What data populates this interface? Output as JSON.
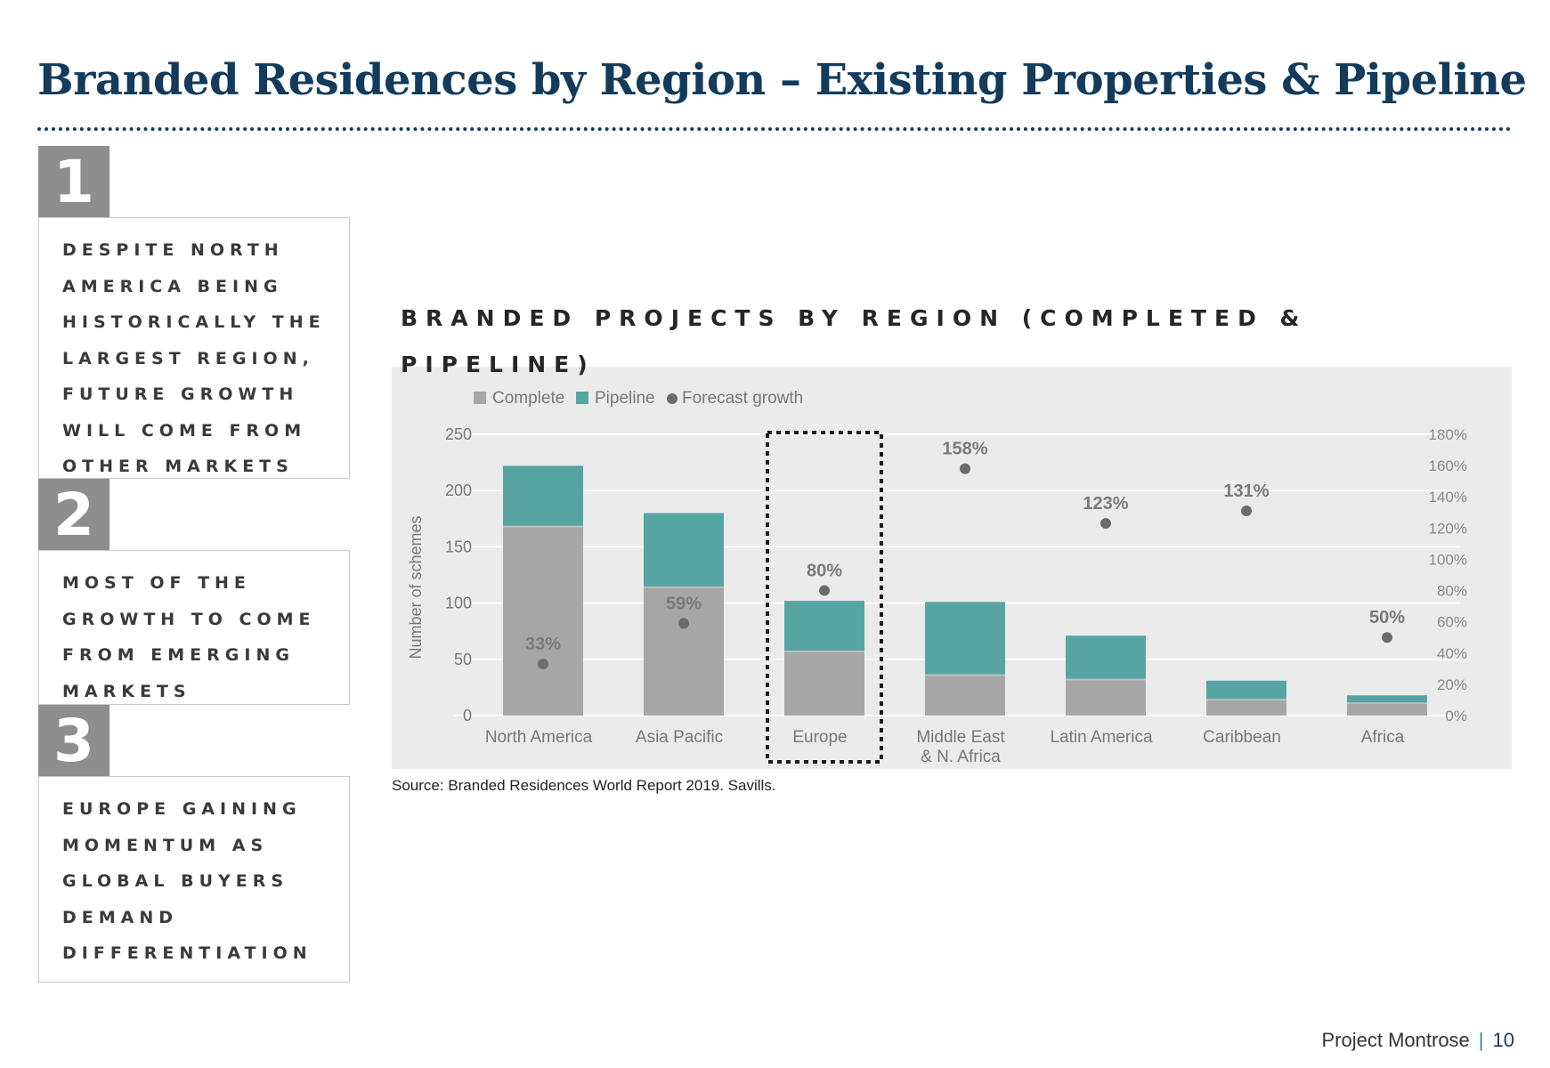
{
  "slide": {
    "title": "Branded Residences by Region – Existing Properties & Pipeline",
    "source": "Source: Branded Residences World Report 2019. Savills.",
    "footer_project": "Project Montrose",
    "footer_separator": "|",
    "page_number": "10"
  },
  "key_points": [
    {
      "number": "1",
      "lines": [
        "DESPITE NORTH",
        "AMERICA BEING",
        "HISTORICALLY THE",
        "LARGEST REGION,",
        "FUTURE GROWTH",
        "WILL COME FROM",
        "OTHER MARKETS"
      ]
    },
    {
      "number": "2",
      "lines": [
        "MOST OF THE",
        "GROWTH TO COME",
        "FROM EMERGING",
        "MARKETS"
      ]
    },
    {
      "number": "3",
      "lines": [
        "EUROPE GAINING",
        "MOMENTUM AS",
        "GLOBAL BUYERS",
        "DEMAND",
        "DIFFERENTIATION"
      ]
    }
  ],
  "chart_title_lines": [
    "BRANDED PROJECTS BY REGION (COMPLETED &",
    "PIPELINE)"
  ],
  "colors": {
    "complete": "#a6a6a6",
    "pipeline": "#57a5a3",
    "forecast": "#6b6b6b",
    "title": "#133b5c"
  },
  "chart_data": {
    "type": "bar",
    "stacked": true,
    "categories": [
      [
        "North America"
      ],
      [
        "Asia Pacific"
      ],
      [
        "Europe"
      ],
      [
        "Middle East",
        "& N. Africa"
      ],
      [
        "Latin America"
      ],
      [
        "Caribbean"
      ],
      [
        "Africa"
      ]
    ],
    "series": [
      {
        "name": "Complete",
        "values": [
          168,
          114,
          57,
          36,
          32,
          14,
          11
        ]
      },
      {
        "name": "Pipeline",
        "values": [
          54,
          66,
          45,
          65,
          39,
          17,
          7
        ]
      }
    ],
    "forecast_series": {
      "name": "Forecast growth",
      "values": [
        33,
        59,
        80,
        158,
        123,
        131,
        50
      ],
      "labels": [
        "33%",
        "59%",
        "80%",
        "158%",
        "123%",
        "131%",
        "50%"
      ]
    },
    "ylabel": "Number of schemes",
    "ylim": [
      0,
      250
    ],
    "yticks": [
      "0",
      "50",
      "100",
      "150",
      "200",
      "250"
    ],
    "y2lim": [
      0,
      180
    ],
    "y2ticks": [
      "0%",
      "20%",
      "40%",
      "60%",
      "80%",
      "100%",
      "120%",
      "140%",
      "160%",
      "180%"
    ],
    "legend": [
      "Complete",
      "Pipeline",
      "Forecast growth"
    ],
    "legend_position": "top-left",
    "grid": true,
    "highlight_category": "Europe"
  }
}
